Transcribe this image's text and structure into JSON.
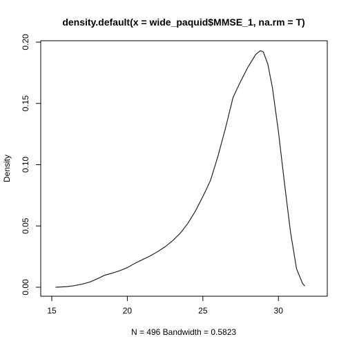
{
  "chart_data": {
    "type": "line",
    "title": "density.default(x = wide_paquid$MMSE_1, na.rm = T)",
    "xlabel": "N = 496   Bandwidth = 0.5823",
    "ylabel": "Density",
    "xlim": [
      15,
      32
    ],
    "ylim": [
      0,
      0.2
    ],
    "x_ticks": [
      15,
      20,
      25,
      30
    ],
    "x_tick_labels": [
      "15",
      "20",
      "25",
      "30"
    ],
    "y_ticks": [
      0.0,
      0.05,
      0.1,
      0.15,
      0.2
    ],
    "y_tick_labels": [
      "0.00",
      "0.05",
      "0.10",
      "0.15",
      "0.20"
    ],
    "grid": false,
    "series": [
      {
        "x": [
          15.25,
          16.0,
          16.5,
          17.0,
          17.5,
          18.0,
          18.5,
          19.0,
          19.5,
          20.0,
          20.5,
          21.0,
          21.5,
          22.0,
          22.5,
          23.0,
          23.5,
          24.0,
          24.5,
          25.0,
          25.5,
          26.0,
          26.5,
          27.0,
          27.5,
          28.0,
          28.5,
          28.8,
          29.0,
          29.3,
          29.6,
          30.0,
          30.4,
          30.8,
          31.2,
          31.6,
          31.75
        ],
        "y": [
          0.0,
          0.0005,
          0.0013,
          0.0025,
          0.0042,
          0.0068,
          0.0098,
          0.0115,
          0.0135,
          0.016,
          0.0195,
          0.0225,
          0.0255,
          0.029,
          0.033,
          0.038,
          0.044,
          0.052,
          0.062,
          0.074,
          0.087,
          0.107,
          0.13,
          0.155,
          0.168,
          0.18,
          0.19,
          0.193,
          0.192,
          0.182,
          0.163,
          0.127,
          0.085,
          0.045,
          0.015,
          0.003,
          0.001
        ]
      }
    ]
  }
}
